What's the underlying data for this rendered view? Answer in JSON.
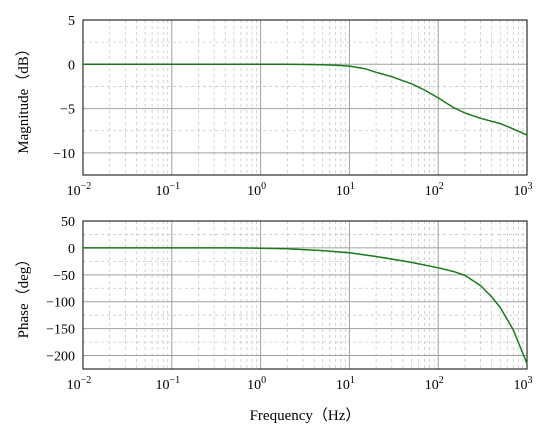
{
  "chart_data": [
    {
      "type": "line",
      "title": "",
      "xlabel": "",
      "ylabel": "Magnitude（dB）",
      "x_scale": "log",
      "xlim": [
        0.01,
        1000
      ],
      "ylim": [
        -12.5,
        5
      ],
      "x_ticks": [
        0.01,
        0.1,
        1,
        10,
        100,
        1000
      ],
      "y_ticks": [
        5,
        0,
        -5,
        -10
      ],
      "x_tick_labels": [
        {
          "base": "10",
          "exp": "−2"
        },
        {
          "base": "10",
          "exp": "−1"
        },
        {
          "base": "10",
          "exp": "0"
        },
        {
          "base": "10",
          "exp": "1"
        },
        {
          "base": "10",
          "exp": "2"
        },
        {
          "base": "10",
          "exp": "3"
        }
      ],
      "y_tick_labels": [
        "5",
        "0",
        "−5",
        "−10"
      ],
      "grid": true,
      "series": [
        {
          "color": "#1a7a1a",
          "x": [
            0.01,
            0.1,
            1,
            2,
            5,
            7,
            10,
            15,
            20,
            30,
            50,
            70,
            100,
            150,
            200,
            300,
            500,
            700,
            1000
          ],
          "y": [
            0,
            0,
            0,
            0,
            -0.05,
            -0.1,
            -0.2,
            -0.5,
            -0.9,
            -1.4,
            -2.2,
            -2.9,
            -3.8,
            -4.9,
            -5.5,
            -6.1,
            -6.7,
            -7.3,
            -8.0
          ]
        }
      ]
    },
    {
      "type": "line",
      "title": "",
      "xlabel": "Frequency（Hz）",
      "ylabel": "Phase（deg）",
      "x_scale": "log",
      "xlim": [
        0.01,
        1000
      ],
      "ylim": [
        -225,
        50
      ],
      "x_ticks": [
        0.01,
        0.1,
        1,
        10,
        100,
        1000
      ],
      "y_ticks": [
        50,
        0,
        -50,
        -100,
        -150,
        -200
      ],
      "x_tick_labels": [
        {
          "base": "10",
          "exp": "−2"
        },
        {
          "base": "10",
          "exp": "−1"
        },
        {
          "base": "10",
          "exp": "0"
        },
        {
          "base": "10",
          "exp": "1"
        },
        {
          "base": "10",
          "exp": "2"
        },
        {
          "base": "10",
          "exp": "3"
        }
      ],
      "y_tick_labels": [
        "50",
        "0",
        "−50",
        "−100",
        "−150",
        "−200"
      ],
      "grid": true,
      "series": [
        {
          "color": "#1a7a1a",
          "x": [
            0.01,
            0.1,
            0.5,
            1,
            2,
            5,
            10,
            20,
            50,
            100,
            150,
            200,
            300,
            400,
            500,
            700,
            1000
          ],
          "y": [
            0,
            0,
            0,
            -0.5,
            -1.5,
            -5,
            -9,
            -16,
            -27,
            -37,
            -44,
            -51,
            -70,
            -91,
            -111,
            -152,
            -215
          ]
        }
      ]
    }
  ]
}
